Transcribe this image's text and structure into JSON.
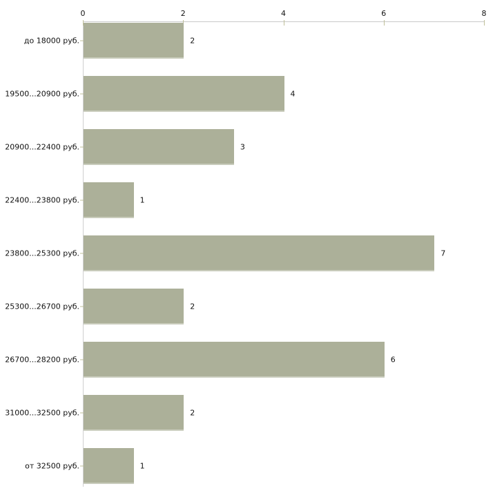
{
  "chart_data": {
    "type": "bar",
    "orientation": "horizontal",
    "title": "",
    "categories": [
      "до 18000 руб.",
      "19500...20900 руб.",
      "20900...22400 руб.",
      "22400...23800 руб.",
      "23800...25300 руб.",
      "25300...26700 руб.",
      "26700...28200 руб.",
      "31000...32500 руб.",
      "от 32500 руб."
    ],
    "values": [
      2,
      4,
      3,
      1,
      7,
      2,
      6,
      2,
      1
    ],
    "xlim": [
      0,
      8
    ],
    "x_ticks": [
      0,
      2,
      4,
      6,
      8
    ],
    "xlabel": "",
    "ylabel": "",
    "axis_position": "top",
    "grid": false,
    "legend": "none",
    "colors": {
      "bar_fill": "#acb099",
      "bar_bottom_edge": "#c9ccbc",
      "axis_line": "#c9c9c9",
      "axis_line_vertical": "#cfcfcf",
      "tick_mark": "#bfbf99",
      "label_text": "#111111",
      "background": "#ffffff"
    }
  }
}
